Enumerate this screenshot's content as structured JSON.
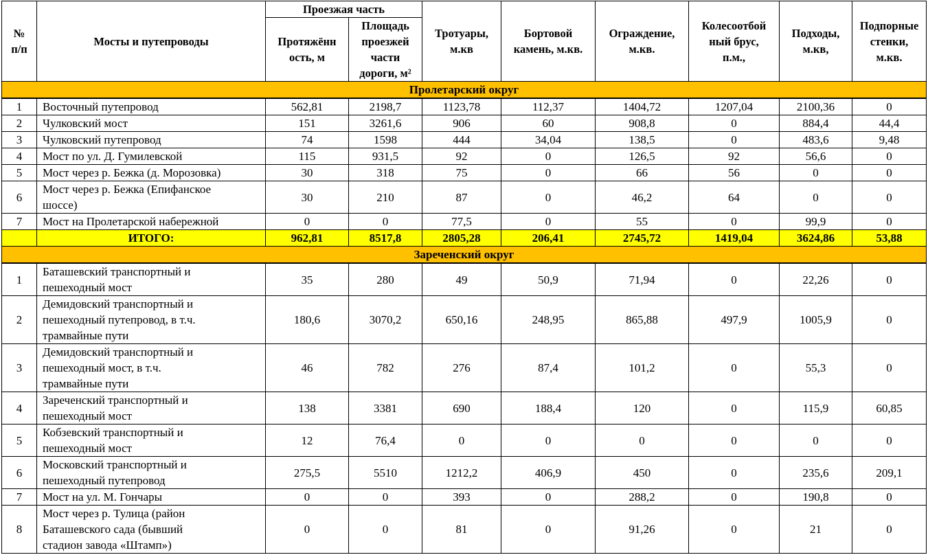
{
  "header": {
    "num": "№\nп/п",
    "name": "Мосты и путепроводы",
    "roadway_group": "Проезжая часть",
    "length": "Протяжённ\nость, м",
    "area": "Площадь\nпроезжей\nчасти\nдороги, м²",
    "sidewalks": "Тротуары,\nм.кв",
    "curb": "Бортовой\nкамень, м.кв.",
    "fence": "Ограждение,\nм.кв.",
    "wheel_guard": "Колесоотбой\nный брус,\nп.м.,",
    "approaches": "Подходы,\nм.кв,",
    "retaining_walls": "Подпорные\nстенки,\nм.кв."
  },
  "sections": [
    {
      "title": "Пролетарский  округ",
      "rows": [
        {
          "n": "1",
          "name": "Восточный путепровод",
          "lines": 1,
          "v": [
            "562,81",
            "2198,7",
            "1123,78",
            "112,37",
            "1404,72",
            "1207,04",
            "2100,36",
            "0"
          ]
        },
        {
          "n": "2",
          "name": "Чулковский мост",
          "lines": 1,
          "v": [
            "151",
            "3261,6",
            "906",
            "60",
            "908,8",
            "0",
            "884,4",
            "44,4"
          ]
        },
        {
          "n": "3",
          "name": "Чулковский путепровод",
          "lines": 1,
          "v": [
            "74",
            "1598",
            "444",
            "34,04",
            "138,5",
            "0",
            "483,6",
            "9,48"
          ]
        },
        {
          "n": "4",
          "name": "Мост по ул. Д. Гумилевской",
          "lines": 1,
          "v": [
            "115",
            "931,5",
            "92",
            "0",
            "126,5",
            "92",
            "56,6",
            "0"
          ]
        },
        {
          "n": "5",
          "name": "Мост через р. Бежка (д. Морозовка)",
          "lines": 1,
          "v": [
            "30",
            "318",
            "75",
            "0",
            "66",
            "56",
            "0",
            "0"
          ]
        },
        {
          "n": "6",
          "name": "Мост через р. Бежка (Епифанское\nшоссе)",
          "lines": 2,
          "v": [
            "30",
            "210",
            "87",
            "0",
            "46,2",
            "64",
            "0",
            "0"
          ]
        },
        {
          "n": "7",
          "name": "Мост на Пролетарской  набережной",
          "lines": 1,
          "v": [
            "0",
            "0",
            "77,5",
            "0",
            "55",
            "0",
            "99,9",
            "0"
          ]
        }
      ],
      "total": {
        "label": "ИТОГО:",
        "v": [
          "962,81",
          "8517,8",
          "2805,28",
          "206,41",
          "2745,72",
          "1419,04",
          "3624,86",
          "53,88"
        ]
      }
    },
    {
      "title": "Зареченский округ",
      "rows": [
        {
          "n": "1",
          "name": "Баташевский транспортный и\nпешеходный мост",
          "lines": 2,
          "v": [
            "35",
            "280",
            "49",
            "50,9",
            "71,94",
            "0",
            "22,26",
            "0"
          ]
        },
        {
          "n": "2",
          "name": "Демидовский транспортный и\nпешеходный  путепровод, в т.ч.\nтрамвайные пути",
          "lines": 3,
          "v": [
            "180,6",
            "3070,2",
            "650,16",
            "248,95",
            "865,88",
            "497,9",
            "1005,9",
            "0"
          ]
        },
        {
          "n": "3",
          "name": "Демидовский транспортный и\nпешеходный мост, в т.ч.\nтрамвайные пути",
          "lines": 3,
          "v": [
            "46",
            "782",
            "276",
            "87,4",
            "101,2",
            "0",
            "55,3",
            "0"
          ]
        },
        {
          "n": "4",
          "name": "Зареченский транспортный и\nпешеходный мост",
          "lines": 2,
          "v": [
            "138",
            "3381",
            "690",
            "188,4",
            "120",
            "0",
            "115,9",
            "60,85"
          ]
        },
        {
          "n": "5",
          "name": "Кобзевский транспортный и\nпешеходный мост",
          "lines": 2,
          "v": [
            "12",
            "76,4",
            "0",
            "0",
            "0",
            "0",
            "0",
            "0"
          ]
        },
        {
          "n": "6",
          "name": "Московский транспортный и\nпешеходный путепровод",
          "lines": 2,
          "v": [
            "275,5",
            "5510",
            "1212,2",
            "406,9",
            "450",
            "0",
            "235,6",
            "209,1"
          ]
        },
        {
          "n": "7",
          "name": "Мост на ул. М. Гончары",
          "lines": 1,
          "v": [
            "0",
            "0",
            "393",
            "0",
            "288,2",
            "0",
            "190,8",
            "0"
          ]
        },
        {
          "n": "8",
          "name": "Мост через р. Тулица (район\nБаташевского сада (бывший\nстадион завода «Штамп»)",
          "lines": 3,
          "v": [
            "0",
            "0",
            "81",
            "0",
            "91,26",
            "0",
            "21",
            "0"
          ]
        }
      ]
    }
  ],
  "colors": {
    "section_bg": "#ffc000",
    "total_bg": "#ffff00"
  }
}
